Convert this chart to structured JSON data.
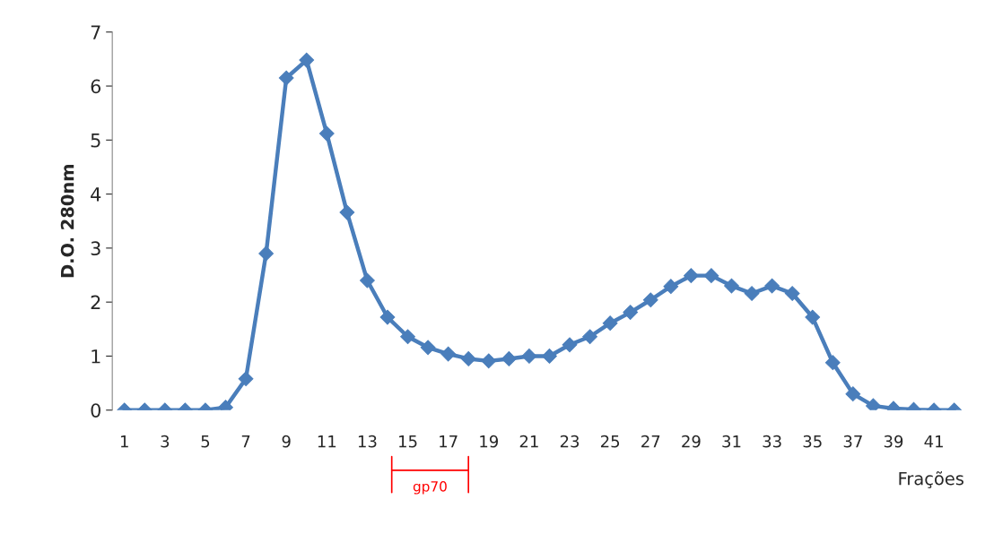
{
  "chart_data": {
    "type": "line",
    "xlabel": "Frações",
    "ylabel": "D.O. 280nm",
    "categories": [
      "1",
      null,
      "3",
      null,
      "5",
      null,
      "7",
      null,
      "9",
      null,
      "11",
      null,
      "13",
      null,
      "15",
      null,
      "17",
      null,
      "19",
      null,
      "21",
      null,
      "23",
      null,
      "25",
      null,
      "27",
      null,
      "29",
      null,
      "31",
      null,
      "33",
      null,
      "35",
      null,
      "37",
      null,
      "39",
      null,
      "41",
      null
    ],
    "series": [
      {
        "color": "#4a7ebb",
        "values": [
          0,
          0,
          0,
          0,
          0,
          0.05,
          0.58,
          2.9,
          6.15,
          6.48,
          5.12,
          3.66,
          2.4,
          1.72,
          1.36,
          1.16,
          1.04,
          0.95,
          0.91,
          0.95,
          1.0,
          1.0,
          1.21,
          1.36,
          1.61,
          1.81,
          2.04,
          2.29,
          2.49,
          2.49,
          2.3,
          2.16,
          2.3,
          2.16,
          1.72,
          0.88,
          0.3,
          0.08,
          0.03,
          0.01,
          0,
          0
        ]
      }
    ],
    "ylim": [
      0,
      7
    ],
    "yticks": [
      0,
      1,
      2,
      3,
      4,
      5,
      6,
      7
    ],
    "marker": "diamond",
    "grid": false,
    "legend": false,
    "annotations": [
      "gp70"
    ]
  }
}
